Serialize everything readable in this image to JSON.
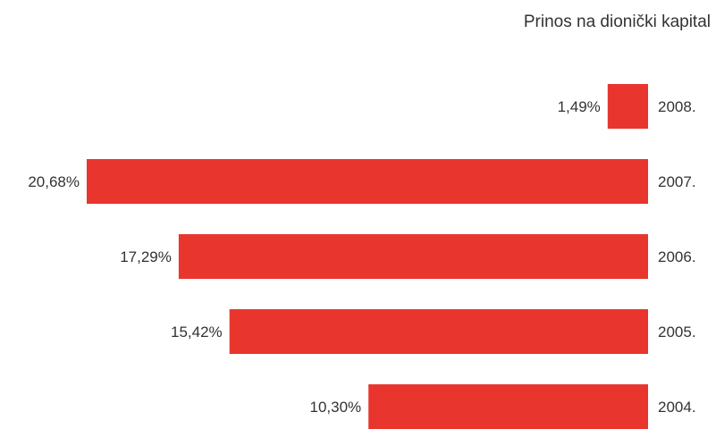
{
  "chart_data": {
    "type": "bar",
    "orientation": "horizontal",
    "title": "Prinos na dionički kapital",
    "xlabel": "",
    "ylabel": "",
    "categories": [
      "2008.",
      "2007.",
      "2006.",
      "2005.",
      "2004."
    ],
    "values": [
      1.49,
      20.68,
      17.29,
      15.42,
      10.3
    ],
    "value_labels": [
      "1,49%",
      "20,68%",
      "17,29%",
      "15,42%",
      "10,30%"
    ],
    "unit": "%",
    "xlim": [
      0,
      20.68
    ],
    "grid": false,
    "legend": "none",
    "bar_color": "#e8352e"
  }
}
